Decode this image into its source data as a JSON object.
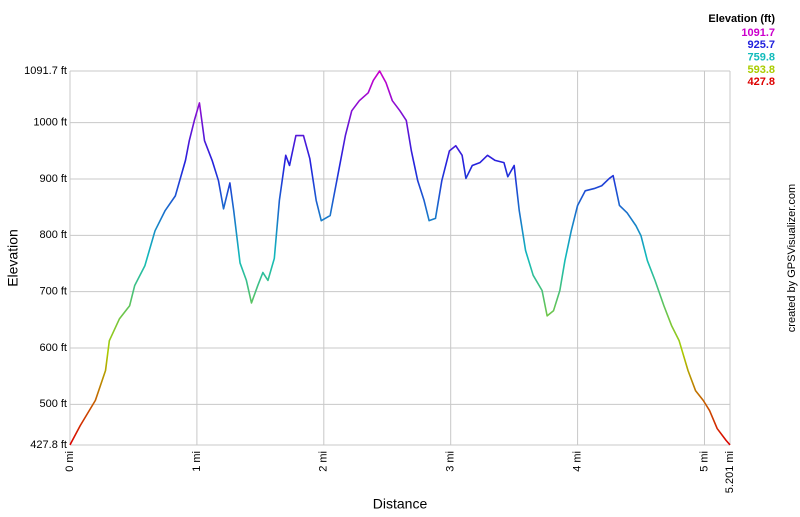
{
  "chart_data": {
    "type": "line",
    "x_label": "Distance",
    "y_label": "Elevation",
    "legend_title": "Elevation (ft)",
    "credit": "created by GPSVisualizer.com",
    "color_scale": [
      {
        "value": 1091.7,
        "color": "#cc00cc"
      },
      {
        "value": 925.7,
        "color": "#2222dd"
      },
      {
        "value": 759.8,
        "color": "#11bbbb"
      },
      {
        "value": 593.8,
        "color": "#aacc00"
      },
      {
        "value": 427.8,
        "color": "#dd0000"
      }
    ],
    "grid": true,
    "xlim": [
      0,
      5.201
    ],
    "ylim": [
      427.8,
      1091.7
    ],
    "xticks": [
      {
        "value": 0,
        "label": "0 mi"
      },
      {
        "value": 1,
        "label": "1 mi"
      },
      {
        "value": 2,
        "label": "2 mi"
      },
      {
        "value": 3,
        "label": "3 mi"
      },
      {
        "value": 4,
        "label": "4 mi"
      },
      {
        "value": 5,
        "label": "5 mi"
      },
      {
        "value": 5.201,
        "label": "5.201 mi"
      }
    ],
    "yticks": [
      {
        "value": 427.8,
        "label": "427.8 ft"
      },
      {
        "value": 500,
        "label": "500 ft"
      },
      {
        "value": 600,
        "label": "600 ft"
      },
      {
        "value": 700,
        "label": "700 ft"
      },
      {
        "value": 800,
        "label": "800 ft"
      },
      {
        "value": 900,
        "label": "900 ft"
      },
      {
        "value": 1000,
        "label": "1000 ft"
      },
      {
        "value": 1091.7,
        "label": "1091.7 ft"
      }
    ],
    "x": [
      0,
      0.08,
      0.2,
      0.28,
      0.31,
      0.39,
      0.47,
      0.51,
      0.59,
      0.67,
      0.75,
      0.83,
      0.91,
      0.94,
      0.98,
      1.02,
      1.06,
      1.12,
      1.17,
      1.21,
      1.26,
      1.29,
      1.34,
      1.39,
      1.43,
      1.48,
      1.52,
      1.56,
      1.61,
      1.65,
      1.7,
      1.73,
      1.78,
      1.84,
      1.89,
      1.94,
      1.98,
      2.05,
      2.11,
      2.17,
      2.22,
      2.28,
      2.35,
      2.39,
      2.44,
      2.49,
      2.54,
      2.6,
      2.65,
      2.69,
      2.74,
      2.79,
      2.83,
      2.88,
      2.93,
      2.99,
      3.04,
      3.09,
      3.12,
      3.17,
      3.23,
      3.29,
      3.35,
      3.42,
      3.45,
      3.5,
      3.54,
      3.59,
      3.65,
      3.72,
      3.76,
      3.81,
      3.86,
      3.9,
      3.95,
      4.0,
      4.06,
      4.13,
      4.19,
      4.25,
      4.28,
      4.33,
      4.39,
      4.46,
      4.5,
      4.55,
      4.61,
      4.68,
      4.74,
      4.8,
      4.87,
      4.93,
      4.99,
      5.04,
      5.1,
      5.17,
      5.201
    ],
    "series": [
      {
        "values": [
          428,
          462,
          507,
          560,
          613,
          652,
          675,
          711,
          746,
          808,
          844,
          870,
          933,
          968,
          1004,
          1035,
          968,
          933,
          897,
          847,
          893,
          844,
          751,
          720,
          680,
          711,
          734,
          720,
          759,
          862,
          942,
          924,
          977,
          977,
          936,
          862,
          826,
          835,
          906,
          977,
          1021,
          1039,
          1053,
          1075,
          1091.7,
          1071,
          1039,
          1021,
          1004,
          950,
          897,
          862,
          826,
          830,
          897,
          950,
          959,
          942,
          901,
          924,
          929,
          942,
          933,
          929,
          904,
          924,
          844,
          773,
          729,
          702,
          657,
          666,
          702,
          755,
          808,
          853,
          879,
          883,
          888,
          901,
          906,
          853,
          840,
          817,
          799,
          755,
          720,
          675,
          640,
          613,
          560,
          524,
          507,
          489,
          457,
          436,
          428
        ]
      }
    ]
  }
}
